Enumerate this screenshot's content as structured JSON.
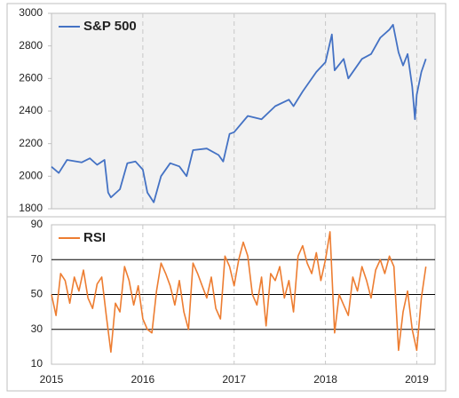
{
  "chart_data": [
    {
      "type": "line",
      "x": [
        2015.0,
        2015.08,
        2015.17,
        2015.33,
        2015.42,
        2015.5,
        2015.58,
        2015.62,
        2015.65,
        2015.75,
        2015.83,
        2015.92,
        2016.0,
        2016.05,
        2016.12,
        2016.2,
        2016.3,
        2016.4,
        2016.48,
        2016.55,
        2016.7,
        2016.83,
        2016.88,
        2016.95,
        2017.0,
        2017.15,
        2017.3,
        2017.45,
        2017.6,
        2017.65,
        2017.75,
        2017.9,
        2018.0,
        2018.07,
        2018.1,
        2018.2,
        2018.25,
        2018.4,
        2018.5,
        2018.6,
        2018.7,
        2018.74,
        2018.8,
        2018.85,
        2018.9,
        2018.95,
        2018.98,
        2019.0,
        2019.05,
        2019.1
      ],
      "series": [
        {
          "name": "S&P 500",
          "color": "#4472c4",
          "values": [
            2058,
            2020,
            2100,
            2085,
            2110,
            2070,
            2100,
            1900,
            1870,
            1920,
            2080,
            2090,
            2040,
            1900,
            1840,
            2000,
            2080,
            2060,
            2000,
            2160,
            2170,
            2130,
            2090,
            2260,
            2270,
            2370,
            2350,
            2430,
            2470,
            2430,
            2520,
            2640,
            2700,
            2870,
            2650,
            2720,
            2600,
            2720,
            2750,
            2850,
            2900,
            2930,
            2760,
            2680,
            2750,
            2550,
            2350,
            2500,
            2640,
            2720
          ]
        }
      ],
      "xlim": [
        2015,
        2019.2
      ],
      "ylim": [
        1800,
        3000
      ],
      "yticks": [
        1800,
        2000,
        2200,
        2400,
        2600,
        2800,
        3000
      ]
    },
    {
      "type": "line",
      "x": [
        2015.0,
        2015.05,
        2015.1,
        2015.15,
        2015.2,
        2015.25,
        2015.3,
        2015.35,
        2015.4,
        2015.45,
        2015.5,
        2015.55,
        2015.6,
        2015.65,
        2015.7,
        2015.75,
        2015.8,
        2015.85,
        2015.9,
        2015.95,
        2016.0,
        2016.05,
        2016.1,
        2016.15,
        2016.2,
        2016.25,
        2016.3,
        2016.35,
        2016.4,
        2016.45,
        2016.5,
        2016.55,
        2016.6,
        2016.65,
        2016.7,
        2016.75,
        2016.8,
        2016.85,
        2016.9,
        2016.95,
        2017.0,
        2017.05,
        2017.1,
        2017.15,
        2017.2,
        2017.25,
        2017.3,
        2017.35,
        2017.4,
        2017.45,
        2017.5,
        2017.55,
        2017.6,
        2017.65,
        2017.7,
        2017.75,
        2017.8,
        2017.85,
        2017.9,
        2017.95,
        2018.0,
        2018.05,
        2018.1,
        2018.15,
        2018.2,
        2018.25,
        2018.3,
        2018.35,
        2018.4,
        2018.45,
        2018.5,
        2018.55,
        2018.6,
        2018.65,
        2018.7,
        2018.75,
        2018.8,
        2018.85,
        2018.9,
        2018.95,
        2019.0,
        2019.05,
        2019.1
      ],
      "series": [
        {
          "name": "RSI",
          "color": "#ed7d31",
          "values": [
            50,
            38,
            62,
            58,
            45,
            60,
            52,
            64,
            48,
            42,
            56,
            60,
            38,
            17,
            45,
            40,
            66,
            58,
            44,
            55,
            36,
            30,
            28,
            52,
            68,
            62,
            55,
            44,
            58,
            40,
            30,
            68,
            62,
            55,
            48,
            60,
            42,
            36,
            72,
            66,
            55,
            70,
            80,
            72,
            50,
            44,
            60,
            32,
            62,
            58,
            66,
            48,
            58,
            40,
            72,
            78,
            68,
            62,
            74,
            58,
            70,
            86,
            28,
            50,
            44,
            38,
            60,
            52,
            66,
            58,
            48,
            64,
            70,
            62,
            72,
            66,
            18,
            40,
            52,
            30,
            18,
            48,
            66
          ]
        }
      ],
      "xlim": [
        2015,
        2019.2
      ],
      "xticks": [
        2015,
        2016,
        2017,
        2018,
        2019
      ],
      "ylim": [
        10,
        90
      ],
      "yticks": [
        10,
        30,
        50,
        70,
        90
      ]
    }
  ]
}
